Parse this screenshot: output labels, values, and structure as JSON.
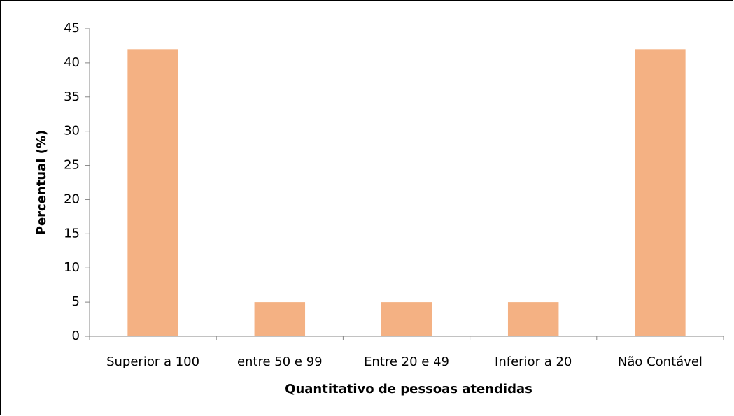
{
  "chart_data": {
    "type": "bar",
    "x_label": "Quantitativo de pessoas atendidas",
    "y_label": "Percentual (%)",
    "categories": [
      "Superior a 100",
      "entre 50 e 99",
      "Entre 20 e 49",
      "Inferior a 20",
      "Não Contável"
    ],
    "values": [
      42,
      5,
      5,
      5,
      42
    ],
    "color": "#f4b183",
    "ylim": [
      0,
      45
    ],
    "yticks": [
      0,
      5,
      10,
      15,
      20,
      25,
      30,
      35,
      40,
      45
    ],
    "grid": false
  }
}
